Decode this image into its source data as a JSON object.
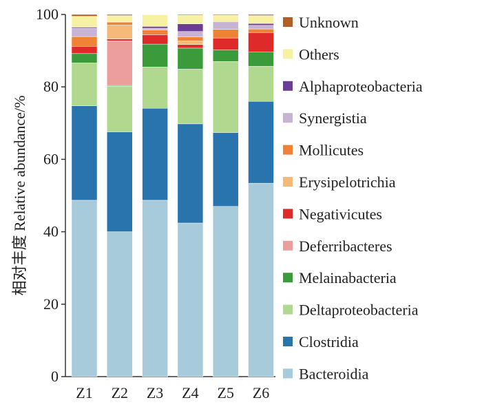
{
  "chart_data": {
    "type": "bar",
    "stacked": true,
    "categories": [
      "Z1",
      "Z2",
      "Z3",
      "Z4",
      "Z5",
      "Z6"
    ],
    "ylabel": "相对丰度  Relative abundance/%",
    "ylim": [
      0,
      100
    ],
    "yticks": [
      "0",
      "20",
      "40",
      "60",
      "80",
      "100"
    ],
    "legend_position": "right",
    "series": [
      {
        "name": "Bacteroidia",
        "color": "#a8cbdb",
        "values": [
          48.7,
          40.0,
          48.7,
          42.4,
          47.0,
          53.4
        ]
      },
      {
        "name": "Clostridia",
        "color": "#2a74ad",
        "values": [
          26.1,
          27.6,
          25.4,
          27.4,
          20.4,
          22.6
        ]
      },
      {
        "name": "Deltaproteobacteria",
        "color": "#b0d88f",
        "values": [
          11.8,
          12.6,
          11.4,
          15.1,
          19.6,
          9.7
        ]
      },
      {
        "name": "Melainabacteria",
        "color": "#3b9b3b",
        "values": [
          2.6,
          0.2,
          6.3,
          5.8,
          3.2,
          3.9
        ]
      },
      {
        "name": "Deferribacteres",
        "color": "#ec9e9c",
        "values": [
          0.0,
          12.3,
          0.0,
          0.0,
          0.0,
          0.0
        ]
      },
      {
        "name": "Negativicutes",
        "color": "#df2a2a",
        "values": [
          2.0,
          0.5,
          2.6,
          1.0,
          3.3,
          5.4
        ]
      },
      {
        "name": "Erysipelotrichia",
        "color": "#f5b97a",
        "values": [
          0.0,
          3.9,
          0.0,
          1.0,
          0.0,
          0.0
        ]
      },
      {
        "name": "Mollicutes",
        "color": "#f08236",
        "values": [
          2.7,
          0.8,
          1.3,
          1.1,
          2.4,
          1.0
        ]
      },
      {
        "name": "Synergistia",
        "color": "#c7b3d3",
        "values": [
          2.3,
          0.0,
          0.5,
          1.5,
          1.9,
          1.0
        ]
      },
      {
        "name": "Alphaproteobacteria",
        "color": "#6b3d96",
        "values": [
          0.3,
          0.0,
          0.5,
          2.1,
          0.2,
          0.5
        ]
      },
      {
        "name": "Others",
        "color": "#f7f2a3",
        "values": [
          3.0,
          1.8,
          3.2,
          2.4,
          1.8,
          2.2
        ]
      },
      {
        "name": "Unknown",
        "color": "#b35d27",
        "values": [
          0.5,
          0.3,
          0.1,
          0.2,
          0.2,
          0.3
        ]
      }
    ]
  }
}
